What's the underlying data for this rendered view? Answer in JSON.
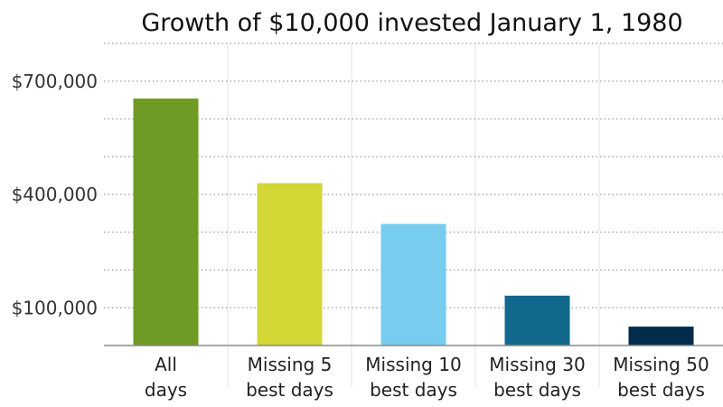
{
  "chart_data": {
    "type": "bar",
    "title": "Growth of $10,000 invested January 1, 1980",
    "xlabel": "",
    "ylabel": "",
    "categories": [
      [
        "All",
        "days"
      ],
      [
        "Missing 5",
        "best days"
      ],
      [
        "Missing 10",
        "best days"
      ],
      [
        "Missing 30",
        "best days"
      ],
      [
        "Missing 50",
        "best days"
      ]
    ],
    "values": [
      654000,
      430000,
      322000,
      132000,
      50000
    ],
    "colors": [
      "#6f9a24",
      "#d2d735",
      "#78cdef",
      "#12688b",
      "#032b4b"
    ],
    "yticks": [
      {
        "value": 100000,
        "label": "$100,000"
      },
      {
        "value": 400000,
        "label": "$400,000"
      },
      {
        "value": 700000,
        "label": "$700,000"
      }
    ],
    "gridlines": [
      100000,
      200000,
      300000,
      400000,
      500000,
      600000,
      700000,
      800000
    ],
    "ylim": [
      0,
      800000
    ],
    "grid": true,
    "legend": "none"
  }
}
